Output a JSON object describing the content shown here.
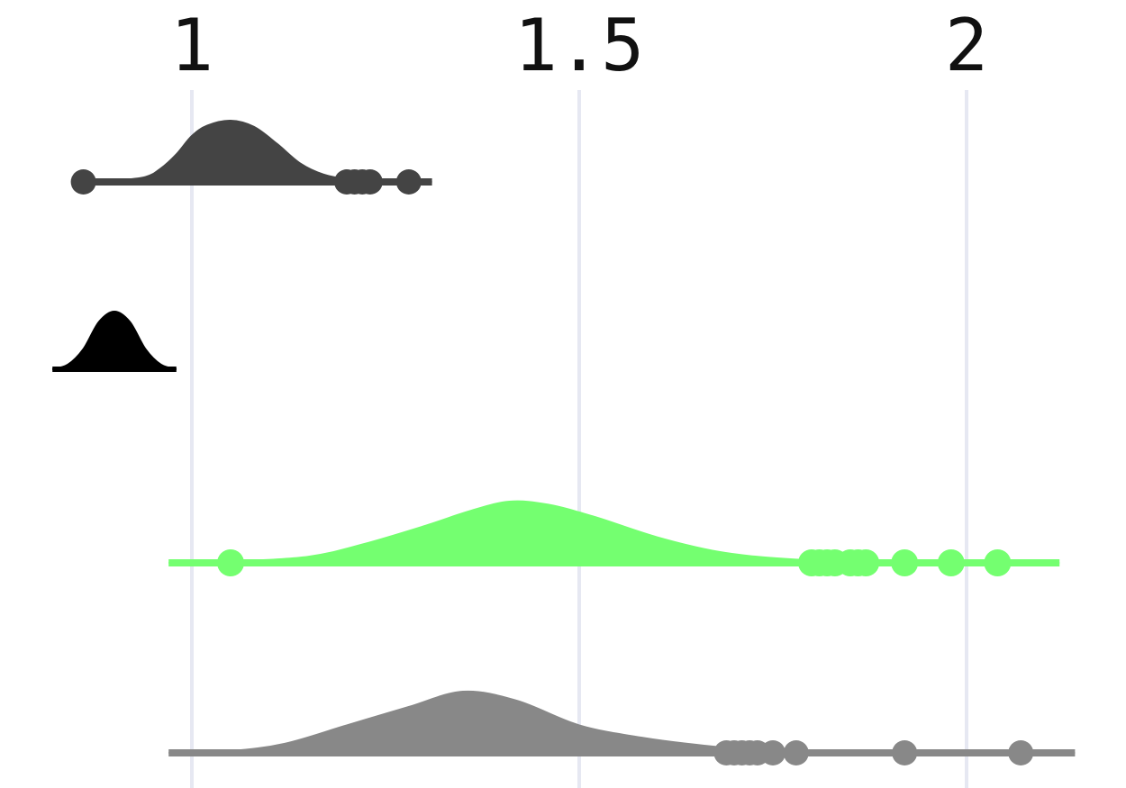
{
  "chart_data": {
    "type": "density",
    "title": "",
    "xlabel": "",
    "ylabel": "",
    "x_axis": {
      "position": "top",
      "ticks": [
        {
          "value": 1,
          "label": "1"
        },
        {
          "value": 1.5,
          "label": "1.5"
        },
        {
          "value": 2,
          "label": "2"
        }
      ],
      "range": [
        0.8,
        2.15
      ]
    },
    "grid": true,
    "gridlines": [
      1,
      1.5,
      2
    ],
    "colors": {
      "grid": "#e6e8f2",
      "tick_text": "#111111",
      "background": "#ffffff"
    },
    "series": [
      {
        "color": "#444444",
        "x_range": [
          0.86,
          1.31
        ],
        "density": [
          [
            0.86,
            0.0
          ],
          [
            0.9,
            0.02
          ],
          [
            0.94,
            0.08
          ],
          [
            0.96,
            0.22
          ],
          [
            0.98,
            0.45
          ],
          [
            1.0,
            0.75
          ],
          [
            1.02,
            0.92
          ],
          [
            1.05,
            1.0
          ],
          [
            1.08,
            0.9
          ],
          [
            1.11,
            0.62
          ],
          [
            1.14,
            0.3
          ],
          [
            1.17,
            0.12
          ],
          [
            1.2,
            0.05
          ],
          [
            1.24,
            0.02
          ],
          [
            1.31,
            0.0
          ]
        ],
        "points": [
          0.86,
          1.2,
          1.21,
          1.22,
          1.23,
          1.28
        ]
      },
      {
        "color": "#000000",
        "x_range": [
          0.82,
          0.98
        ],
        "density": [
          [
            0.82,
            0.0
          ],
          [
            0.84,
            0.08
          ],
          [
            0.86,
            0.35
          ],
          [
            0.88,
            0.82
          ],
          [
            0.9,
            1.0
          ],
          [
            0.92,
            0.82
          ],
          [
            0.94,
            0.35
          ],
          [
            0.96,
            0.08
          ],
          [
            0.98,
            0.0
          ]
        ],
        "points": []
      },
      {
        "color": "#74ff70",
        "x_range": [
          0.97,
          2.12
        ],
        "density": [
          [
            0.97,
            0.0
          ],
          [
            1.05,
            0.02
          ],
          [
            1.15,
            0.1
          ],
          [
            1.22,
            0.3
          ],
          [
            1.3,
            0.6
          ],
          [
            1.36,
            0.85
          ],
          [
            1.41,
            1.0
          ],
          [
            1.46,
            0.95
          ],
          [
            1.52,
            0.75
          ],
          [
            1.6,
            0.42
          ],
          [
            1.68,
            0.18
          ],
          [
            1.76,
            0.07
          ],
          [
            1.85,
            0.02
          ],
          [
            1.95,
            0.01
          ],
          [
            2.12,
            0.0
          ]
        ],
        "points": [
          1.05,
          1.8,
          1.81,
          1.82,
          1.83,
          1.85,
          1.86,
          1.87,
          1.92,
          1.98,
          2.04
        ]
      },
      {
        "color": "#888888",
        "x_range": [
          0.97,
          2.14
        ],
        "density": [
          [
            0.97,
            0.0
          ],
          [
            1.05,
            0.03
          ],
          [
            1.12,
            0.15
          ],
          [
            1.2,
            0.45
          ],
          [
            1.28,
            0.75
          ],
          [
            1.35,
            1.0
          ],
          [
            1.42,
            0.85
          ],
          [
            1.5,
            0.45
          ],
          [
            1.58,
            0.25
          ],
          [
            1.66,
            0.12
          ],
          [
            1.74,
            0.04
          ],
          [
            1.85,
            0.01
          ],
          [
            2.0,
            0.0
          ],
          [
            2.14,
            0.0
          ]
        ],
        "points": [
          1.69,
          1.7,
          1.71,
          1.72,
          1.73,
          1.75,
          1.78,
          1.92,
          2.07
        ]
      }
    ]
  }
}
